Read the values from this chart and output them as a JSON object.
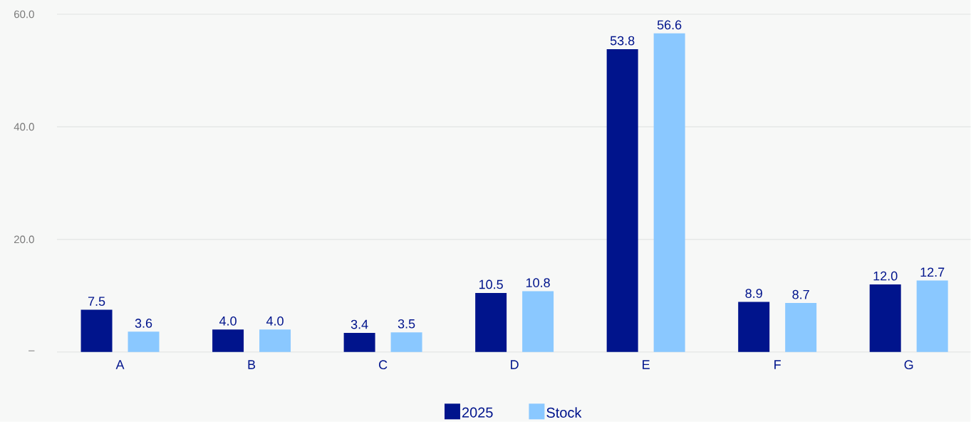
{
  "chart_data": {
    "type": "bar",
    "categories": [
      "A",
      "B",
      "C",
      "D",
      "E",
      "F",
      "G"
    ],
    "series": [
      {
        "name": "2025",
        "color": "#00148c",
        "values": [
          7.5,
          4.0,
          3.4,
          10.5,
          53.8,
          8.9,
          12.0
        ],
        "value_labels": [
          "7.5",
          "4.0",
          "3.4",
          "10.5",
          "53.8",
          "8.9",
          "12.0"
        ]
      },
      {
        "name": "Stock",
        "color": "#8ac8ff",
        "values": [
          3.6,
          4.0,
          3.5,
          10.8,
          56.6,
          8.7,
          12.7
        ],
        "value_labels": [
          "3.6",
          "4.0",
          "3.5",
          "10.8",
          "56.6",
          "8.7",
          "12.7"
        ]
      }
    ],
    "ylim": [
      0,
      60
    ],
    "yticks": [
      {
        "value": 0,
        "label": "–"
      },
      {
        "value": 20,
        "label": "20.0"
      },
      {
        "value": 40,
        "label": "40.0"
      },
      {
        "value": 60,
        "label": "60.0"
      }
    ],
    "grid": "y",
    "legend": "bottom"
  }
}
